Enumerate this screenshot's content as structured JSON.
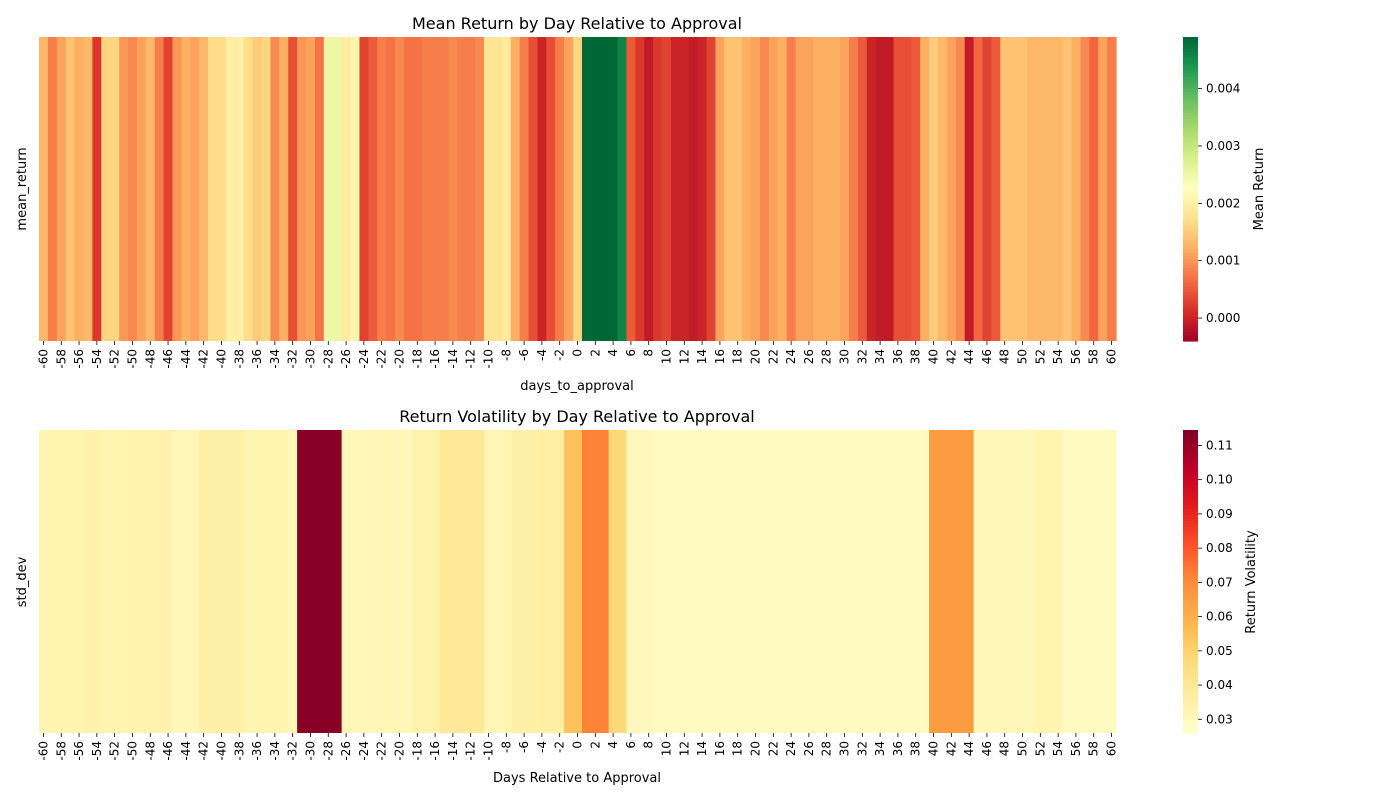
{
  "chart_data": [
    {
      "type": "heatmap",
      "title": "Mean Return by Day Relative to Approval",
      "xlabel": "days_to_approval",
      "ylabel": "mean_return",
      "y_categories": [
        ""
      ],
      "x_start": -60,
      "x_end": 60,
      "x_tick_step": 2,
      "colormap": "RdYlGn",
      "colorbar": {
        "label": "Mean Return",
        "range": [
          -0.0004,
          0.0049
        ],
        "ticks": [
          "0.000",
          "0.001",
          "0.002",
          "0.003",
          "0.004"
        ],
        "tick_values": [
          0.0,
          0.001,
          0.002,
          0.003,
          0.004
        ]
      },
      "values": [
        0.0013,
        0.0008,
        0.0011,
        0.0014,
        0.0012,
        0.0013,
        0.0002,
        0.0016,
        0.0016,
        0.001,
        0.0009,
        0.0011,
        0.0013,
        0.0008,
        0.0003,
        0.001,
        0.0012,
        0.0011,
        0.0013,
        0.0017,
        0.0017,
        0.002,
        0.002,
        0.0017,
        0.0015,
        0.0016,
        0.0009,
        0.0012,
        0.0004,
        0.001,
        0.0011,
        0.0007,
        0.0025,
        0.0025,
        0.0019,
        0.0021,
        0.0003,
        0.0005,
        0.0008,
        0.0007,
        0.0009,
        0.0007,
        0.0007,
        0.0008,
        0.0008,
        0.0008,
        0.0009,
        0.0008,
        0.0008,
        0.0009,
        0.0018,
        0.0018,
        0.0019,
        0.0012,
        0.0008,
        0.0004,
        0.0,
        0.0004,
        0.0008,
        0.0011,
        0.0016,
        0.0049,
        0.0049,
        0.0049,
        0.0049,
        0.0046,
        0.0005,
        0.0002,
        -0.0001,
        0.0002,
        0.0003,
        0.0,
        0.0,
        -0.0001,
        0.0,
        0.0003,
        0.0011,
        0.0014,
        0.0014,
        0.0012,
        0.0011,
        0.0009,
        0.0011,
        0.0012,
        0.0008,
        0.0011,
        0.0011,
        0.0012,
        0.0012,
        0.0012,
        0.0011,
        0.0008,
        0.0005,
        0.0,
        -0.0001,
        -0.0001,
        0.0004,
        0.0004,
        0.0005,
        0.0012,
        0.0015,
        0.0013,
        0.0011,
        0.0009,
        -0.0001,
        0.0006,
        0.0003,
        0.0005,
        0.0014,
        0.0014,
        0.0014,
        0.0013,
        0.0013,
        0.0013,
        0.0013,
        0.0014,
        0.0012,
        0.0009,
        0.0006,
        0.0011,
        0.0008
      ]
    },
    {
      "type": "heatmap",
      "title": "Return Volatility by Day Relative to Approval",
      "xlabel": "Days Relative to Approval",
      "ylabel": "std_dev",
      "y_categories": [
        ""
      ],
      "x_start": -60,
      "x_end": 60,
      "x_tick_step": 2,
      "colormap": "YlOrRd",
      "colorbar": {
        "label": "Return Volatility",
        "range": [
          0.026,
          0.1145
        ],
        "ticks": [
          "0.03",
          "0.04",
          "0.05",
          "0.06",
          "0.07",
          "0.08",
          "0.09",
          "0.10",
          "0.11"
        ],
        "tick_values": [
          0.03,
          0.04,
          0.05,
          0.06,
          0.07,
          0.08,
          0.09,
          0.1,
          0.11
        ]
      },
      "values": [
        0.033,
        0.033,
        0.033,
        0.033,
        0.033,
        0.034,
        0.034,
        0.033,
        0.033,
        0.033,
        0.034,
        0.034,
        0.034,
        0.034,
        0.034,
        0.031,
        0.031,
        0.031,
        0.035,
        0.035,
        0.035,
        0.035,
        0.035,
        0.033,
        0.033,
        0.033,
        0.033,
        0.033,
        0.031,
        0.113,
        0.113,
        0.113,
        0.113,
        0.113,
        0.031,
        0.031,
        0.031,
        0.032,
        0.032,
        0.032,
        0.031,
        0.031,
        0.034,
        0.034,
        0.034,
        0.039,
        0.039,
        0.039,
        0.039,
        0.039,
        0.032,
        0.032,
        0.032,
        0.035,
        0.035,
        0.035,
        0.036,
        0.036,
        0.036,
        0.055,
        0.055,
        0.072,
        0.072,
        0.072,
        0.048,
        0.048,
        0.03,
        0.03,
        0.03,
        0.029,
        0.029,
        0.029,
        0.029,
        0.029,
        0.029,
        0.029,
        0.029,
        0.029,
        0.029,
        0.029,
        0.029,
        0.029,
        0.029,
        0.029,
        0.029,
        0.029,
        0.029,
        0.029,
        0.029,
        0.029,
        0.029,
        0.029,
        0.029,
        0.029,
        0.029,
        0.029,
        0.029,
        0.029,
        0.029,
        0.029,
        0.066,
        0.066,
        0.066,
        0.066,
        0.066,
        0.031,
        0.031,
        0.031,
        0.031,
        0.031,
        0.031,
        0.031,
        0.033,
        0.033,
        0.033,
        0.029,
        0.029,
        0.029,
        0.029,
        0.029,
        0.029
      ]
    }
  ]
}
